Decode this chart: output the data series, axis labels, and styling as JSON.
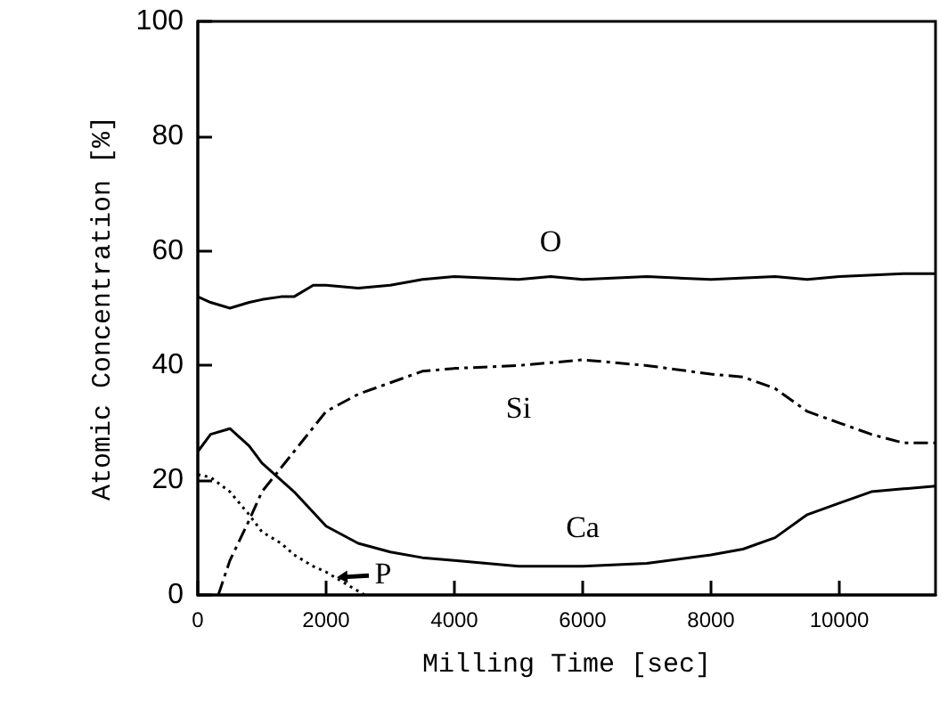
{
  "chart_data": {
    "type": "line",
    "xlabel": "Milling Time [sec]",
    "ylabel": "Atomic Concentration [%]",
    "xlim": [
      0,
      11500
    ],
    "xticks": [
      0,
      2000,
      4000,
      6000,
      8000,
      10000
    ],
    "ylim": [
      0,
      100
    ],
    "yticks": [
      0,
      20,
      40,
      60,
      80,
      100
    ],
    "grid": false,
    "marker": "none",
    "series": [
      {
        "name": "O",
        "color": "#000000",
        "line_style": "solid",
        "x": [
          0,
          200,
          500,
          800,
          1000,
          1300,
          1500,
          1800,
          2000,
          2500,
          3000,
          3500,
          4000,
          5000,
          5500,
          6000,
          7000,
          8000,
          9000,
          9500,
          10000,
          11000,
          11500
        ],
        "values": [
          52,
          51,
          50,
          51,
          51.5,
          52,
          52,
          54,
          54,
          53.5,
          54,
          55,
          55.5,
          55,
          55.5,
          55,
          55.5,
          55,
          55.5,
          55,
          55.5,
          56,
          56
        ]
      },
      {
        "name": "Si",
        "color": "#000000",
        "line_style": "dashed",
        "x": [
          320,
          500,
          800,
          1000,
          1500,
          2000,
          2500,
          3000,
          3500,
          4000,
          5000,
          6000,
          7000,
          8000,
          8500,
          9000,
          9500,
          10000,
          10500,
          11000,
          11500
        ],
        "values": [
          0,
          6,
          13,
          18,
          25,
          32,
          35,
          37,
          39,
          39.5,
          40,
          41,
          40,
          38.5,
          38,
          36,
          32,
          30,
          28,
          26.5,
          26.5
        ]
      },
      {
        "name": "Ca",
        "color": "#000000",
        "line_style": "solid",
        "x": [
          0,
          200,
          500,
          800,
          1000,
          1500,
          2000,
          2500,
          3000,
          3500,
          4000,
          5000,
          6000,
          7000,
          8000,
          8500,
          9000,
          9500,
          10000,
          10500,
          11000,
          11500
        ],
        "values": [
          25,
          28,
          29,
          26,
          23,
          18,
          12,
          9,
          7.5,
          6.5,
          6,
          5,
          5,
          5.5,
          7,
          8,
          10,
          14,
          16,
          18,
          18.5,
          19
        ]
      },
      {
        "name": "P",
        "color": "#000000",
        "line_style": "dotted",
        "x": [
          0,
          200,
          500,
          800,
          1000,
          1300,
          1500,
          1800,
          2000,
          2300,
          2600
        ],
        "values": [
          21,
          20.5,
          18,
          14,
          11,
          9,
          7,
          5,
          4,
          2,
          0
        ]
      }
    ]
  }
}
